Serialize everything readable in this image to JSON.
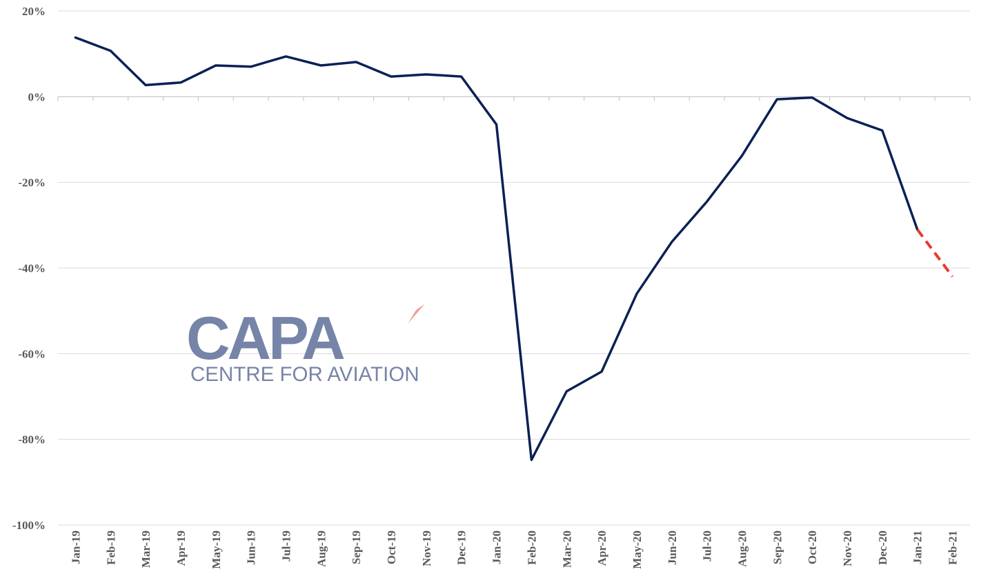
{
  "chart_data": {
    "type": "line",
    "title": "",
    "xlabel": "",
    "ylabel": "",
    "ylim": [
      -100,
      20
    ],
    "yticks": [
      20,
      0,
      -20,
      -40,
      -60,
      -80,
      -100
    ],
    "ytick_suffix": "%",
    "grid": true,
    "categories": [
      "Jan-19",
      "Feb-19",
      "Mar-19",
      "Apr-19",
      "May-19",
      "Jun-19",
      "Jul-19",
      "Aug-19",
      "Sep-19",
      "Oct-19",
      "Nov-19",
      "Dec-19",
      "Jan-20",
      "Feb-20",
      "Mar-20",
      "Apr-20",
      "May-20",
      "Jun-20",
      "Jul-20",
      "Aug-20",
      "Sep-20",
      "Oct-20",
      "Nov-20",
      "Dec-20",
      "Jan-21",
      "Feb-21"
    ],
    "series": [
      {
        "name": "",
        "style": "solid",
        "color": "#0b2154",
        "values": [
          13.8,
          10.7,
          2.7,
          3.3,
          7.3,
          7.0,
          9.4,
          7.3,
          8.1,
          4.7,
          5.2,
          4.7,
          -6.5,
          -84.8,
          -68.8,
          -64.2,
          -46.0,
          -33.9,
          -24.5,
          -13.8,
          -0.6,
          -0.2,
          -5.0,
          -7.9,
          -31.0,
          null
        ]
      },
      {
        "name": "",
        "style": "dashed",
        "color": "#e8392d",
        "values": [
          null,
          null,
          null,
          null,
          null,
          null,
          null,
          null,
          null,
          null,
          null,
          null,
          null,
          null,
          null,
          null,
          null,
          null,
          null,
          null,
          null,
          null,
          null,
          null,
          -31.0,
          -42.0
        ]
      }
    ]
  },
  "watermark": {
    "logo_text": "CAPA",
    "tagline": "CENTRE FOR AVIATION",
    "color": "#7684a8",
    "accent": "#f0a09a"
  }
}
